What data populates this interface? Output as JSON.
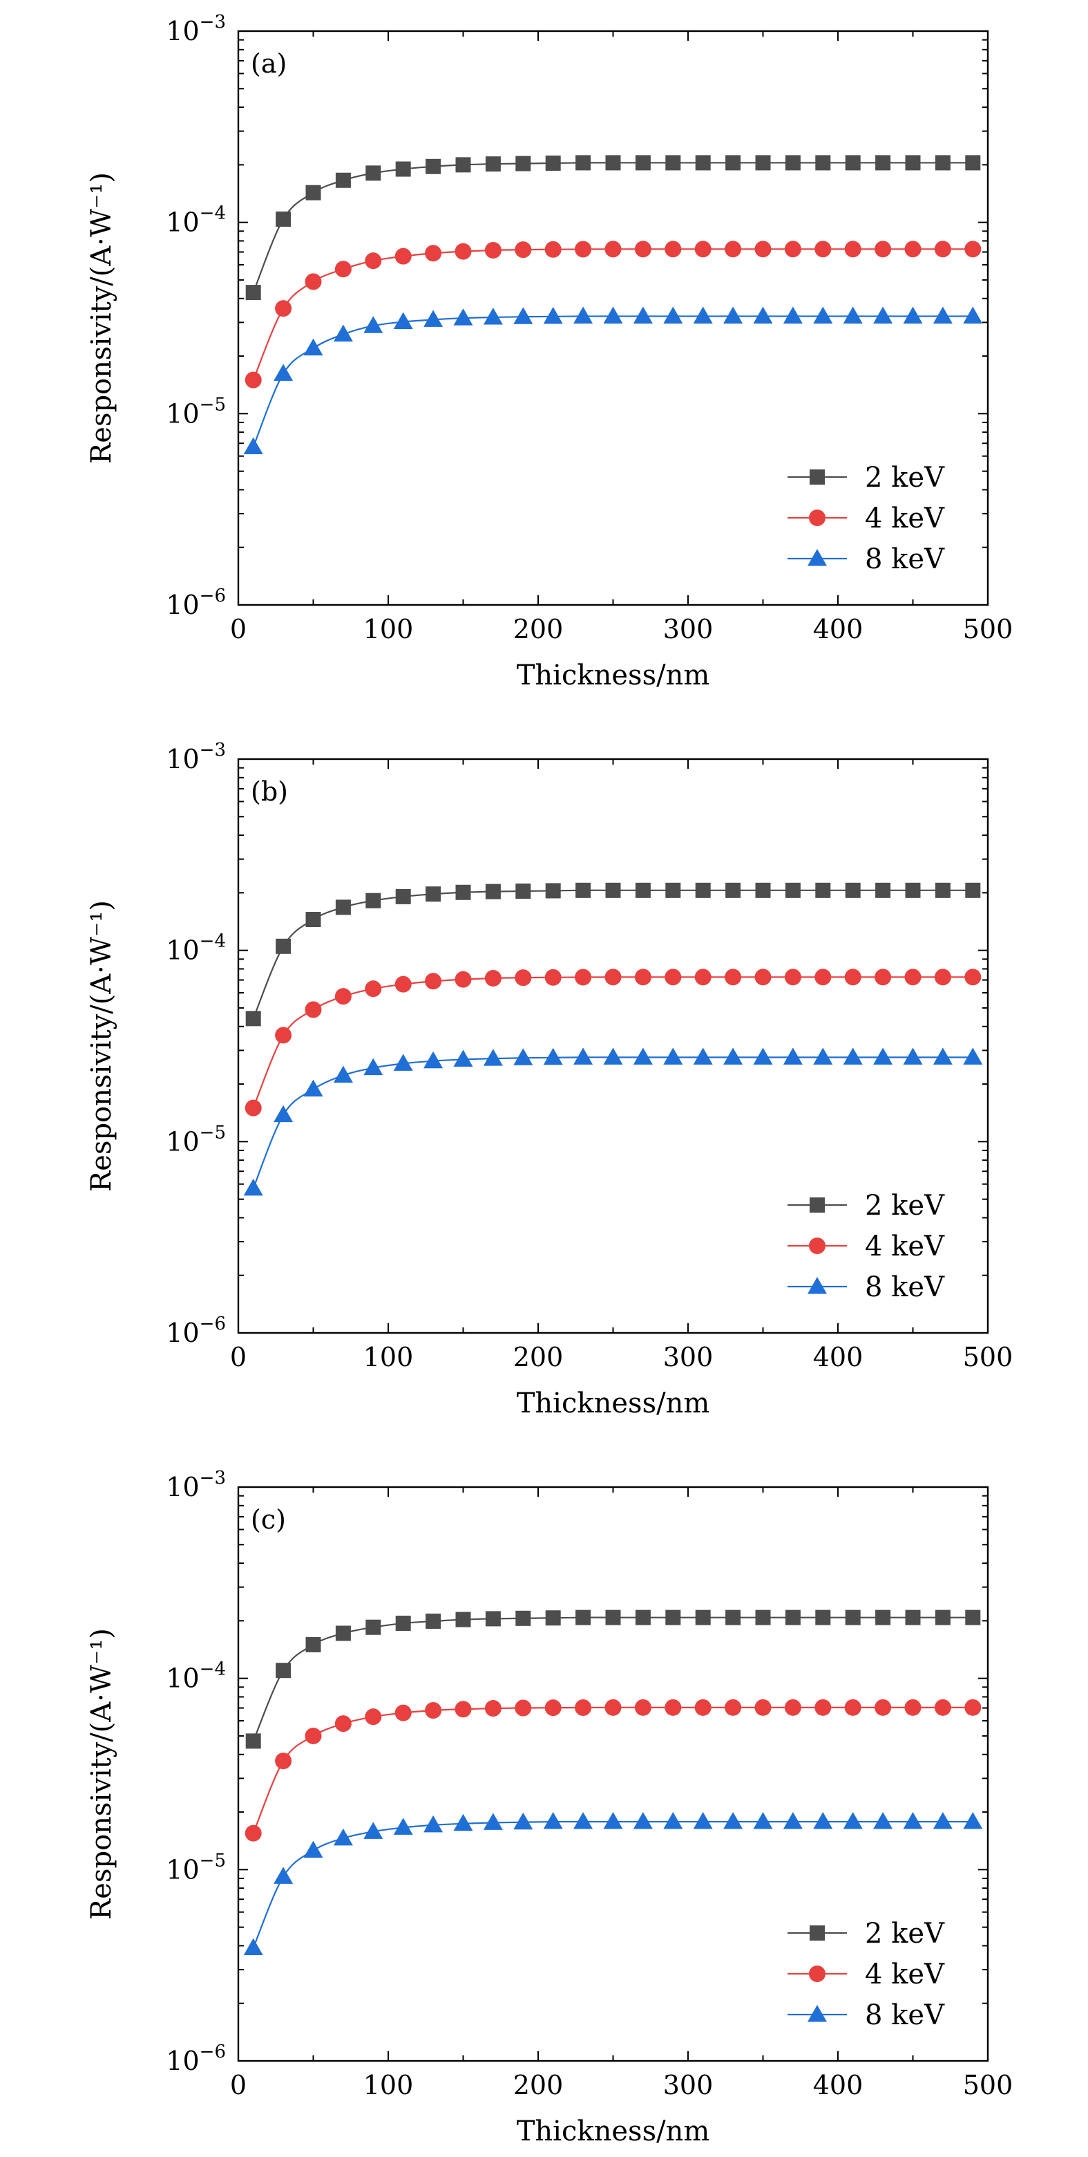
{
  "chart_data": [
    {
      "type": "line",
      "panel_label": "(a)",
      "xlabel": "Thickness/nm",
      "ylabel": "Responsivity/(A·W⁻¹)",
      "xlim": [
        0,
        500
      ],
      "ylim": [
        1e-06,
        0.001
      ],
      "yscale": "log",
      "x_ticks": [
        0,
        100,
        200,
        300,
        400,
        500
      ],
      "y_ticks": [
        {
          "base": "10",
          "exp": "−6",
          "value": 1e-06
        },
        {
          "base": "10",
          "exp": "−5",
          "value": 1e-05
        },
        {
          "base": "10",
          "exp": "−4",
          "value": 0.0001
        },
        {
          "base": "10",
          "exp": "−3",
          "value": 0.001
        }
      ],
      "legend_position": "lower-right",
      "x": [
        10,
        30,
        50,
        70,
        90,
        110,
        130,
        150,
        170,
        190,
        210,
        230,
        250,
        270,
        290,
        310,
        330,
        350,
        370,
        390,
        410,
        430,
        450,
        470,
        490
      ],
      "series": [
        {
          "name": "2 keV",
          "color": "#4d4d4d",
          "marker": "square",
          "values": [
            4.3e-05,
            0.000104,
            0.000143,
            0.000166,
            0.000181,
            0.00019,
            0.000196,
            0.0002,
            0.000202,
            0.000203,
            0.000204,
            0.000205,
            0.000205,
            0.000205,
            0.000205,
            0.000205,
            0.000205,
            0.000205,
            0.000205,
            0.000205,
            0.000205,
            0.000205,
            0.000205,
            0.000205,
            0.000205
          ]
        },
        {
          "name": "4 keV",
          "color": "#e8403f",
          "marker": "circle",
          "values": [
            1.5e-05,
            3.55e-05,
            4.9e-05,
            5.7e-05,
            6.3e-05,
            6.65e-05,
            6.9e-05,
            7.05e-05,
            7.15e-05,
            7.2e-05,
            7.22e-05,
            7.24e-05,
            7.25e-05,
            7.25e-05,
            7.25e-05,
            7.25e-05,
            7.25e-05,
            7.25e-05,
            7.25e-05,
            7.25e-05,
            7.25e-05,
            7.25e-05,
            7.25e-05,
            7.25e-05,
            7.25e-05
          ]
        },
        {
          "name": "8 keV",
          "color": "#1f6fd6",
          "marker": "triangle",
          "values": [
            6.7e-06,
            1.62e-05,
            2.2e-05,
            2.6e-05,
            2.88e-05,
            3.02e-05,
            3.1e-05,
            3.16e-05,
            3.19e-05,
            3.21e-05,
            3.22e-05,
            3.23e-05,
            3.23e-05,
            3.23e-05,
            3.23e-05,
            3.23e-05,
            3.23e-05,
            3.23e-05,
            3.23e-05,
            3.23e-05,
            3.23e-05,
            3.23e-05,
            3.23e-05,
            3.23e-05,
            3.23e-05
          ]
        }
      ]
    },
    {
      "type": "line",
      "panel_label": "(b)",
      "xlabel": "Thickness/nm",
      "ylabel": "Responsivity/(A·W⁻¹)",
      "xlim": [
        0,
        500
      ],
      "ylim": [
        1e-06,
        0.001
      ],
      "yscale": "log",
      "x_ticks": [
        0,
        100,
        200,
        300,
        400,
        500
      ],
      "y_ticks": [
        {
          "base": "10",
          "exp": "−6",
          "value": 1e-06
        },
        {
          "base": "10",
          "exp": "−5",
          "value": 1e-05
        },
        {
          "base": "10",
          "exp": "−4",
          "value": 0.0001
        },
        {
          "base": "10",
          "exp": "−3",
          "value": 0.001
        }
      ],
      "legend_position": "lower-right",
      "x": [
        10,
        30,
        50,
        70,
        90,
        110,
        130,
        150,
        170,
        190,
        210,
        230,
        250,
        270,
        290,
        310,
        330,
        350,
        370,
        390,
        410,
        430,
        450,
        470,
        490
      ],
      "series": [
        {
          "name": "2 keV",
          "color": "#4d4d4d",
          "marker": "square",
          "values": [
            4.4e-05,
            0.000105,
            0.000145,
            0.000168,
            0.000182,
            0.000191,
            0.000197,
            0.000201,
            0.000203,
            0.000204,
            0.000205,
            0.000206,
            0.000206,
            0.000206,
            0.000206,
            0.000206,
            0.000206,
            0.000206,
            0.000206,
            0.000206,
            0.000206,
            0.000206,
            0.000206,
            0.000206,
            0.000206
          ]
        },
        {
          "name": "4 keV",
          "color": "#e8403f",
          "marker": "circle",
          "values": [
            1.5e-05,
            3.6e-05,
            4.9e-05,
            5.75e-05,
            6.3e-05,
            6.65e-05,
            6.9e-05,
            7.05e-05,
            7.15e-05,
            7.2e-05,
            7.22e-05,
            7.24e-05,
            7.25e-05,
            7.25e-05,
            7.25e-05,
            7.25e-05,
            7.25e-05,
            7.25e-05,
            7.25e-05,
            7.25e-05,
            7.25e-05,
            7.25e-05,
            7.25e-05,
            7.25e-05,
            7.25e-05
          ]
        },
        {
          "name": "8 keV",
          "color": "#1f6fd6",
          "marker": "triangle",
          "values": [
            5.7e-06,
            1.38e-05,
            1.88e-05,
            2.22e-05,
            2.43e-05,
            2.56e-05,
            2.64e-05,
            2.69e-05,
            2.72e-05,
            2.74e-05,
            2.75e-05,
            2.76e-05,
            2.76e-05,
            2.76e-05,
            2.76e-05,
            2.76e-05,
            2.76e-05,
            2.76e-05,
            2.76e-05,
            2.76e-05,
            2.76e-05,
            2.76e-05,
            2.76e-05,
            2.76e-05,
            2.76e-05
          ]
        }
      ]
    },
    {
      "type": "line",
      "panel_label": "(c)",
      "xlabel": "Thickness/nm",
      "ylabel": "Responsivity/(A·W⁻¹)",
      "xlim": [
        0,
        500
      ],
      "ylim": [
        1e-06,
        0.001
      ],
      "yscale": "log",
      "x_ticks": [
        0,
        100,
        200,
        300,
        400,
        500
      ],
      "y_ticks": [
        {
          "base": "10",
          "exp": "−6",
          "value": 1e-06
        },
        {
          "base": "10",
          "exp": "−5",
          "value": 1e-05
        },
        {
          "base": "10",
          "exp": "−4",
          "value": 0.0001
        },
        {
          "base": "10",
          "exp": "−3",
          "value": 0.001
        }
      ],
      "legend_position": "lower-right",
      "x": [
        10,
        30,
        50,
        70,
        90,
        110,
        130,
        150,
        170,
        190,
        210,
        230,
        250,
        270,
        290,
        310,
        330,
        350,
        370,
        390,
        410,
        430,
        450,
        470,
        490
      ],
      "series": [
        {
          "name": "2 keV",
          "color": "#4d4d4d",
          "marker": "square",
          "values": [
            4.7e-05,
            0.00011,
            0.00015,
            0.000172,
            0.000185,
            0.000194,
            0.000199,
            0.000203,
            0.000205,
            0.000206,
            0.000207,
            0.000208,
            0.000208,
            0.000208,
            0.000208,
            0.000208,
            0.000208,
            0.000208,
            0.000208,
            0.000208,
            0.000208,
            0.000208,
            0.000208,
            0.000208,
            0.000208
          ]
        },
        {
          "name": "4 keV",
          "color": "#e8403f",
          "marker": "circle",
          "values": [
            1.55e-05,
            3.7e-05,
            5e-05,
            5.8e-05,
            6.3e-05,
            6.6e-05,
            6.8e-05,
            6.9e-05,
            6.97e-05,
            7e-05,
            7.02e-05,
            7.03e-05,
            7.04e-05,
            7.04e-05,
            7.04e-05,
            7.04e-05,
            7.04e-05,
            7.04e-05,
            7.04e-05,
            7.04e-05,
            7.04e-05,
            7.04e-05,
            7.04e-05,
            7.04e-05,
            7.04e-05
          ]
        },
        {
          "name": "8 keV",
          "color": "#1f6fd6",
          "marker": "triangle",
          "values": [
            3.9e-06,
            9.2e-06,
            1.26e-05,
            1.46e-05,
            1.58e-05,
            1.66e-05,
            1.71e-05,
            1.74e-05,
            1.76e-05,
            1.77e-05,
            1.78e-05,
            1.78e-05,
            1.78e-05,
            1.78e-05,
            1.78e-05,
            1.78e-05,
            1.78e-05,
            1.78e-05,
            1.78e-05,
            1.78e-05,
            1.78e-05,
            1.78e-05,
            1.78e-05,
            1.78e-05,
            1.78e-05
          ]
        }
      ]
    }
  ]
}
